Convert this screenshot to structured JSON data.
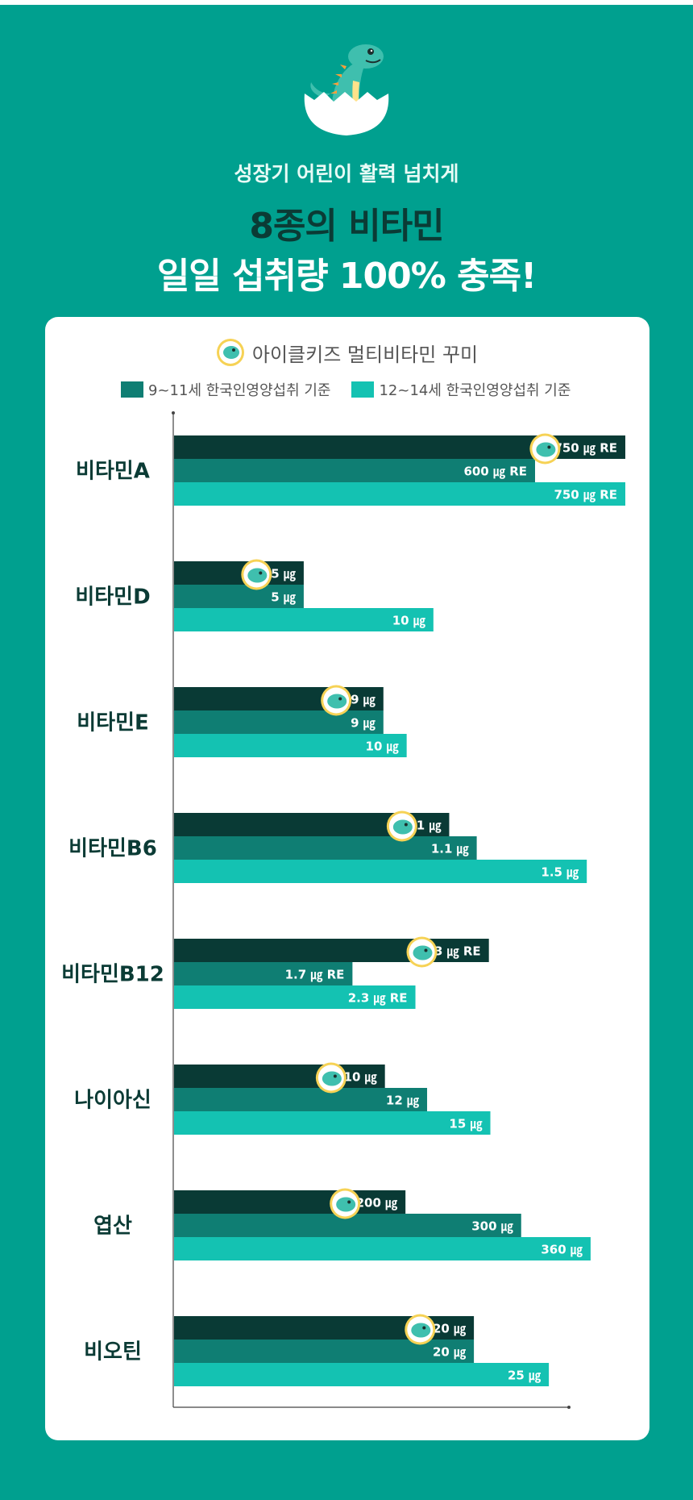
{
  "header": {
    "subtitle": "성장기 어린이 활력 넘치게",
    "title_line1": "8종의 비타민",
    "title_line2": "일일 섭취량 100% 충족!"
  },
  "colors": {
    "background": "#00a08f",
    "product": "#093a35",
    "age_9_11": "#0f7e73",
    "age_12_14": "#14c2b2",
    "text_dark": "#0b3b35"
  },
  "chart_data": {
    "type": "bar",
    "orientation": "horizontal",
    "categories": [
      "비타민A",
      "비타민D",
      "비타민E",
      "비타민B6",
      "비타민B12",
      "나이아신",
      "엽산",
      "비오틴"
    ],
    "series": [
      {
        "name": "아이클키즈 멀티비타민 꾸미",
        "values": [
          750,
          5,
          9,
          1,
          3,
          10,
          200,
          20
        ],
        "labels": [
          "750 ㎍ RE",
          "5 ㎍",
          "9 ㎍",
          "1 ㎍",
          "3 ㎍ RE",
          "10 ㎍",
          "200 ㎍",
          "20 ㎍"
        ]
      },
      {
        "name": "9~11세 한국인영양섭취 기준",
        "values": [
          600,
          5,
          9,
          1.1,
          1.7,
          12,
          300,
          20
        ],
        "labels": [
          "600 ㎍ RE",
          "5 ㎍",
          "9 ㎍",
          "1.1 ㎍",
          "1.7 ㎍ RE",
          "12 ㎍",
          "300 ㎍",
          "20 ㎍"
        ]
      },
      {
        "name": "12~14세 한국인영양섭취 기준",
        "values": [
          750,
          10,
          10,
          1.5,
          2.3,
          15,
          360,
          25
        ],
        "labels": [
          "750 ㎍ RE",
          "10 ㎍",
          "10 ㎍",
          "1.5 ㎍",
          "2.3 ㎍ RE",
          "15 ㎍",
          "360 ㎍",
          "25 ㎍"
        ]
      }
    ],
    "legend_position": "top",
    "grid": false
  }
}
